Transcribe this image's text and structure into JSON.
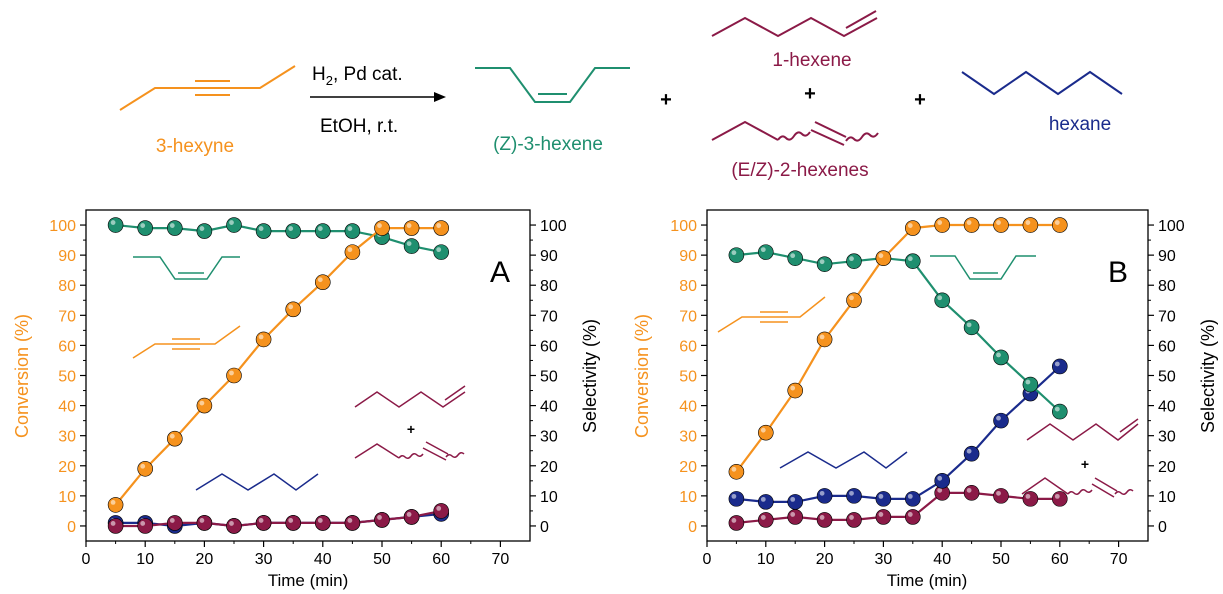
{
  "colors": {
    "conversion": "#f5921e",
    "z3hexene": "#1f8f6f",
    "hexenes": "#8b1a47",
    "hexane": "#1a2b8c",
    "axis": "#000000"
  },
  "scheme": {
    "reactant": "3-hexyne",
    "reagent_h2": "H",
    "reagent_h2_sub": "2",
    "reagent_rest": ", Pd cat.",
    "conditions": "EtOH, r.t.",
    "product_z": "(Z)-3-hexene",
    "product_1hexene": "1-hexene",
    "product_2hexenes": "(E/Z)-2-hexenes",
    "product_hexane": "hexane",
    "plus": "+"
  },
  "chart_data": [
    {
      "type": "line",
      "panel_label": "A",
      "xlabel": "Time (min)",
      "ylabel_left": "Conversion (%)",
      "ylabel_right": "Selectivity (%)",
      "xlim": [
        0,
        75
      ],
      "ylim": [
        -5,
        105
      ],
      "x_ticks": [
        "0",
        "10",
        "20",
        "30",
        "40",
        "50",
        "60",
        "70"
      ],
      "y_ticks": [
        "0",
        "10",
        "20",
        "30",
        "40",
        "50",
        "60",
        "70",
        "80",
        "90",
        "100"
      ],
      "x": [
        5,
        10,
        15,
        20,
        25,
        30,
        35,
        40,
        45,
        50,
        55,
        60
      ],
      "series": [
        {
          "key": "hexane",
          "axis": "right",
          "values": [
            1,
            1,
            0,
            1,
            0,
            1,
            1,
            1,
            1,
            2,
            3,
            4
          ]
        },
        {
          "key": "hexenes",
          "axis": "right",
          "values": [
            0,
            0,
            1,
            1,
            0,
            1,
            1,
            1,
            1,
            2,
            3,
            5
          ]
        },
        {
          "key": "z3hexene",
          "axis": "right",
          "values": [
            100,
            99,
            99,
            98,
            100,
            98,
            98,
            98,
            98,
            96,
            93,
            91
          ]
        },
        {
          "key": "conversion",
          "axis": "left",
          "values": [
            7,
            19,
            29,
            40,
            50,
            62,
            72,
            81,
            91,
            99,
            99,
            99
          ]
        }
      ],
      "plus": "+"
    },
    {
      "type": "line",
      "panel_label": "B",
      "xlabel": "Time (min)",
      "ylabel_left": "Conversion (%)",
      "ylabel_right": "Selectivity (%)",
      "xlim": [
        0,
        75
      ],
      "ylim": [
        -5,
        105
      ],
      "x_ticks": [
        "0",
        "10",
        "20",
        "30",
        "40",
        "50",
        "60",
        "70"
      ],
      "y_ticks": [
        "0",
        "10",
        "20",
        "30",
        "40",
        "50",
        "60",
        "70",
        "80",
        "90",
        "100"
      ],
      "x": [
        5,
        10,
        15,
        20,
        25,
        30,
        35,
        40,
        45,
        50,
        55,
        60
      ],
      "series": [
        {
          "key": "hexenes",
          "axis": "right",
          "values": [
            1,
            2,
            3,
            2,
            2,
            3,
            3,
            11,
            11,
            10,
            9,
            9
          ]
        },
        {
          "key": "hexane",
          "axis": "right",
          "values": [
            9,
            8,
            8,
            10,
            10,
            9,
            9,
            15,
            24,
            35,
            44,
            53
          ]
        },
        {
          "key": "z3hexene",
          "axis": "right",
          "values": [
            90,
            91,
            89,
            87,
            88,
            89,
            88,
            75,
            66,
            56,
            47,
            38
          ]
        },
        {
          "key": "conversion",
          "axis": "left",
          "values": [
            18,
            31,
            45,
            62,
            75,
            89,
            99,
            100,
            100,
            100,
            100,
            100
          ]
        }
      ],
      "plus": "+"
    }
  ]
}
